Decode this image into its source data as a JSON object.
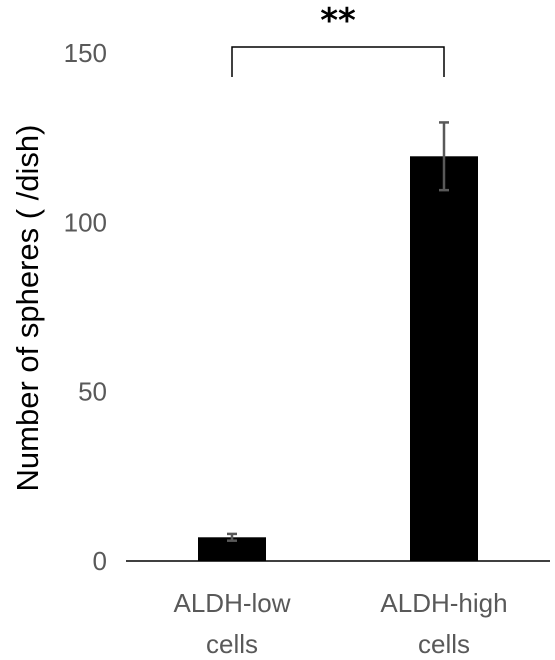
{
  "chart_data": {
    "type": "bar",
    "categories": [
      [
        "ALDH-low",
        "cells"
      ],
      [
        "ALDH-high",
        "cells"
      ]
    ],
    "values": [
      7,
      119.5
    ],
    "errors": [
      1,
      10
    ],
    "ylabel": "Number of spheres ( /dish)",
    "ylim": [
      0,
      150
    ],
    "yticks": [
      0,
      50,
      100,
      150
    ],
    "significance": {
      "label": "**",
      "between": [
        0,
        1
      ]
    },
    "grid": false,
    "colors": {
      "bar": "#000000",
      "error": "#595959",
      "axis": "#000000"
    }
  }
}
